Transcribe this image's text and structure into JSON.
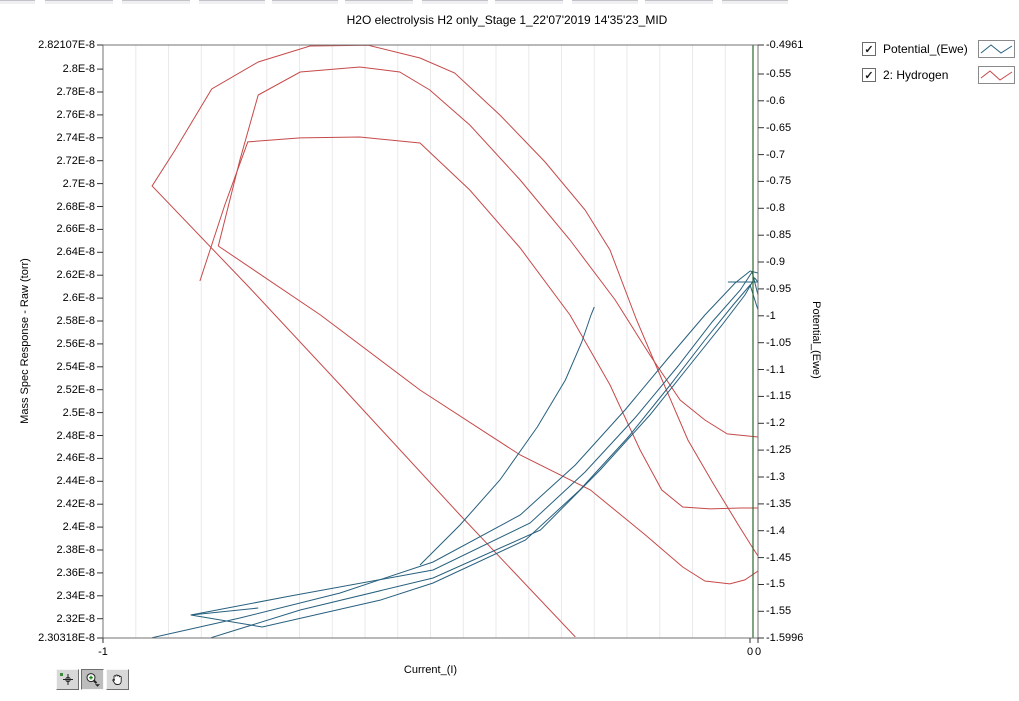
{
  "window_chrome": {
    "top_segments": [
      [
        0,
        35
      ],
      [
        45,
        68
      ],
      [
        122,
        68
      ],
      [
        199,
        66
      ],
      [
        272,
        66
      ],
      [
        345,
        68
      ],
      [
        422,
        66
      ],
      [
        495,
        68
      ],
      [
        572,
        66
      ],
      [
        645,
        68
      ],
      [
        722,
        66
      ]
    ]
  },
  "legend": {
    "check_glyph": "✓",
    "items": [
      {
        "label": "Potential_(Ewe)",
        "color": "#27607e",
        "checked": true
      },
      {
        "label": "2: Hydrogen",
        "color": "#c64949",
        "checked": true
      }
    ]
  },
  "toolbar": {
    "buttons": [
      {
        "name": "cursor-tool",
        "active": false
      },
      {
        "name": "zoom-tool",
        "active": true
      },
      {
        "name": "pan-tool",
        "active": false
      }
    ]
  },
  "chart_data": {
    "type": "line",
    "title": "H2O electrolysis H2 only_Stage 1_22'07'2019 14'35'23_MID",
    "xlabel": "Current_(I)",
    "x_range": [
      -1,
      0
    ],
    "x_tick_labels": [
      {
        "value": -1,
        "label": "-1"
      },
      {
        "value": -0.0122,
        "label": "0"
      },
      {
        "value": 0,
        "label": "0"
      }
    ],
    "grid": {
      "step": 0.05,
      "color": "#e9e9ec",
      "orientation": "vertical"
    },
    "cursor_line": {
      "x": -0.0076,
      "color": "#2d662d"
    },
    "left_axis": {
      "label": "Mass Spec Response - Raw (torr)",
      "min": 2.30318e-08,
      "max": 2.82107e-08,
      "ticks": [
        {
          "value": 2.82107e-08,
          "label": "2.82107E-8"
        },
        {
          "value": 2.8e-08,
          "label": "2.8E-8"
        },
        {
          "value": 2.78e-08,
          "label": "2.78E-8"
        },
        {
          "value": 2.76e-08,
          "label": "2.76E-8"
        },
        {
          "value": 2.74e-08,
          "label": "2.74E-8"
        },
        {
          "value": 2.72e-08,
          "label": "2.72E-8"
        },
        {
          "value": 2.7e-08,
          "label": "2.7E-8"
        },
        {
          "value": 2.68e-08,
          "label": "2.68E-8"
        },
        {
          "value": 2.66e-08,
          "label": "2.66E-8"
        },
        {
          "value": 2.64e-08,
          "label": "2.64E-8"
        },
        {
          "value": 2.62e-08,
          "label": "2.62E-8"
        },
        {
          "value": 2.6e-08,
          "label": "2.6E-8"
        },
        {
          "value": 2.58e-08,
          "label": "2.58E-8"
        },
        {
          "value": 2.56e-08,
          "label": "2.56E-8"
        },
        {
          "value": 2.54e-08,
          "label": "2.54E-8"
        },
        {
          "value": 2.52e-08,
          "label": "2.52E-8"
        },
        {
          "value": 2.5e-08,
          "label": "2.5E-8"
        },
        {
          "value": 2.48e-08,
          "label": "2.48E-8"
        },
        {
          "value": 2.46e-08,
          "label": "2.46E-8"
        },
        {
          "value": 2.44e-08,
          "label": "2.44E-8"
        },
        {
          "value": 2.42e-08,
          "label": "2.42E-8"
        },
        {
          "value": 2.4e-08,
          "label": "2.4E-8"
        },
        {
          "value": 2.38e-08,
          "label": "2.38E-8"
        },
        {
          "value": 2.36e-08,
          "label": "2.36E-8"
        },
        {
          "value": 2.34e-08,
          "label": "2.34E-8"
        },
        {
          "value": 2.32e-08,
          "label": "2.32E-8"
        },
        {
          "value": 2.30318e-08,
          "label": "2.30318E-8"
        }
      ]
    },
    "right_axis": {
      "label": "Potential_(Ewe)",
      "min": -1.5996,
      "max": -0.4961,
      "ticks": [
        {
          "value": -0.4961,
          "label": "-0.4961"
        },
        {
          "value": -0.55,
          "label": "-0.55"
        },
        {
          "value": -0.6,
          "label": "-0.6"
        },
        {
          "value": -0.65,
          "label": "-0.65"
        },
        {
          "value": -0.7,
          "label": "-0.7"
        },
        {
          "value": -0.75,
          "label": "-0.75"
        },
        {
          "value": -0.8,
          "label": "-0.8"
        },
        {
          "value": -0.85,
          "label": "-0.85"
        },
        {
          "value": -0.9,
          "label": "-0.9"
        },
        {
          "value": -0.95,
          "label": "-0.95"
        },
        {
          "value": -1,
          "label": "-1"
        },
        {
          "value": -1.05,
          "label": "-1.05"
        },
        {
          "value": -1.1,
          "label": "-1.1"
        },
        {
          "value": -1.15,
          "label": "-1.15"
        },
        {
          "value": -1.2,
          "label": "-1.2"
        },
        {
          "value": -1.25,
          "label": "-1.25"
        },
        {
          "value": -1.3,
          "label": "-1.3"
        },
        {
          "value": -1.35,
          "label": "-1.35"
        },
        {
          "value": -1.4,
          "label": "-1.4"
        },
        {
          "value": -1.45,
          "label": "-1.45"
        },
        {
          "value": -1.5,
          "label": "-1.5"
        },
        {
          "value": -1.55,
          "label": "-1.55"
        },
        {
          "value": -1.5996,
          "label": "-1.5996"
        }
      ]
    },
    "series": [
      {
        "name": "2: Hydrogen",
        "axis": "left",
        "color": "#c64949",
        "segments": [
          [
            [
              -0.279,
              2.3041e-08
            ],
            [
              -0.455,
              2.4106e-08
            ],
            [
              -0.638,
              2.5242e-08
            ],
            [
              -0.776,
              2.6089e-08
            ],
            [
              -0.925,
              2.6979e-08
            ],
            [
              -0.89,
              2.7294e-08
            ],
            [
              -0.834,
              2.7826e-08
            ],
            [
              -0.763,
              2.8062e-08
            ],
            [
              -0.684,
              2.8202e-08
            ],
            [
              -0.595,
              2.8208e-08
            ],
            [
              -0.516,
              2.8097e-08
            ],
            [
              -0.463,
              2.7966e-08
            ],
            [
              -0.394,
              2.7599e-08
            ],
            [
              -0.325,
              2.7189e-08
            ],
            [
              -0.264,
              2.677e-08
            ],
            [
              -0.226,
              2.642e-08
            ],
            [
              -0.186,
              2.5818e-08
            ],
            [
              -0.147,
              2.5294e-08
            ],
            [
              -0.107,
              2.4761e-08
            ],
            [
              -0.069,
              2.4386e-08
            ],
            [
              -0.029,
              2.401e-08
            ],
            [
              -0.008,
              2.3818e-08
            ],
            [
              0,
              2.3748e-08
            ]
          ],
          [
            [
              -0.824,
              2.6455e-08
            ],
            [
              -0.791,
              2.7206e-08
            ],
            [
              -0.763,
              2.7774e-08
            ],
            [
              -0.699,
              2.7975e-08
            ],
            [
              -0.608,
              2.8019e-08
            ],
            [
              -0.547,
              2.7975e-08
            ],
            [
              -0.501,
              2.7818e-08
            ],
            [
              -0.44,
              2.7512e-08
            ],
            [
              -0.363,
              2.7032e-08
            ],
            [
              -0.287,
              2.6508e-08
            ],
            [
              -0.218,
              2.5984e-08
            ],
            [
              -0.165,
              2.5503e-08
            ],
            [
              -0.119,
              2.511e-08
            ],
            [
              -0.081,
              2.4936e-08
            ],
            [
              -0.047,
              2.4814e-08
            ],
            [
              0,
              2.4787e-08
            ]
          ],
          [
            [
              -0.852,
              2.615e-08
            ],
            [
              -0.814,
              2.6813e-08
            ],
            [
              -0.779,
              2.7364e-08
            ],
            [
              -0.699,
              2.7399e-08
            ],
            [
              -0.608,
              2.7407e-08
            ],
            [
              -0.516,
              2.7355e-08
            ],
            [
              -0.44,
              2.6944e-08
            ],
            [
              -0.363,
              2.6438e-08
            ],
            [
              -0.287,
              2.5853e-08
            ],
            [
              -0.226,
              2.5242e-08
            ],
            [
              -0.18,
              2.4674e-08
            ],
            [
              -0.147,
              2.4325e-08
            ],
            [
              -0.115,
              2.4176e-08
            ],
            [
              -0.073,
              2.4159e-08
            ],
            [
              -0.027,
              2.4167e-08
            ],
            [
              0,
              2.4167e-08
            ]
          ],
          [
            [
              -0.824,
              2.6455e-08
            ],
            [
              -0.668,
              2.5853e-08
            ],
            [
              -0.516,
              2.5198e-08
            ],
            [
              -0.363,
              2.463e-08
            ],
            [
              -0.256,
              2.4325e-08
            ],
            [
              -0.172,
              2.3932e-08
            ],
            [
              -0.115,
              2.3652e-08
            ],
            [
              -0.081,
              2.353e-08
            ],
            [
              -0.043,
              2.3504e-08
            ],
            [
              -0.02,
              2.3539e-08
            ],
            [
              0,
              2.3617e-08
            ]
          ]
        ]
      },
      {
        "name": "Potential_(Ewe)",
        "axis": "right",
        "color": "#27607e",
        "segments": [
          [
            [
              -0.925,
              -1.599
            ],
            [
              -0.791,
              -1.5624
            ],
            [
              -0.638,
              -1.5159
            ],
            [
              -0.496,
              -1.4582
            ],
            [
              -0.363,
              -1.3707
            ],
            [
              -0.279,
              -1.2777
            ],
            [
              -0.203,
              -1.1753
            ],
            [
              -0.137,
              -1.0786
            ],
            [
              -0.081,
              -0.9985
            ],
            [
              -0.035,
              -0.939
            ],
            [
              -0.012,
              -0.9167
            ],
            [
              0,
              -0.9204
            ]
          ],
          [
            [
              -0.866,
              -1.5568
            ],
            [
              -0.714,
              -1.5215
            ],
            [
              -0.496,
              -1.4731
            ],
            [
              -0.348,
              -1.3856
            ],
            [
              -0.264,
              -1.2907
            ],
            [
              -0.188,
              -1.1902
            ],
            [
              -0.122,
              -1.0935
            ],
            [
              -0.07,
              -1.0116
            ],
            [
              -0.027,
              -0.952
            ],
            [
              -0.009,
              -0.9185
            ],
            [
              0,
              -0.9613
            ]
          ],
          [
            [
              -0.835,
              -1.599
            ],
            [
              -0.699,
              -1.5475
            ],
            [
              -0.496,
              -1.488
            ],
            [
              -0.332,
              -1.3986
            ],
            [
              -0.241,
              -1.287
            ],
            [
              -0.165,
              -1.1846
            ],
            [
              -0.104,
              -1.0916
            ],
            [
              -0.055,
              -1.0172
            ],
            [
              -0.02,
              -0.9613
            ],
            [
              -0.005,
              -0.9297
            ],
            [
              0,
              -0.9371
            ]
          ],
          [
            [
              -0.763,
              -1.5438
            ],
            [
              -0.866,
              -1.5568
            ],
            [
              -0.757,
              -1.5791
            ],
            [
              -0.576,
              -1.5289
            ],
            [
              -0.496,
              -1.4973
            ],
            [
              -0.355,
              -1.4172
            ],
            [
              -0.272,
              -1.3242
            ],
            [
              -0.198,
              -1.2256
            ],
            [
              -0.134,
              -1.1288
            ],
            [
              -0.081,
              -1.0451
            ],
            [
              -0.038,
              -0.9799
            ],
            [
              -0.012,
              -0.9427
            ],
            [
              0,
              -0.9892
            ]
          ],
          [
            [
              -0.516,
              -1.4638
            ],
            [
              -0.455,
              -1.3893
            ],
            [
              -0.394,
              -1.3056
            ],
            [
              -0.337,
              -1.207
            ],
            [
              -0.294,
              -1.1195
            ],
            [
              -0.269,
              -1.0488
            ],
            [
              -0.255,
              -0.9985
            ],
            [
              -0.25,
              -0.9837
            ]
          ],
          [
            [
              -0.046,
              -0.9371
            ],
            [
              0,
              -0.9371
            ]
          ]
        ]
      }
    ]
  }
}
